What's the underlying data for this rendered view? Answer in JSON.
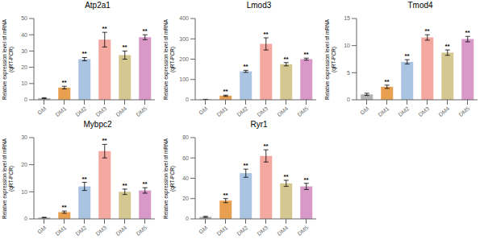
{
  "chart_data": [
    {
      "type": "bar",
      "title": "Atp2a1",
      "categories": [
        "GM",
        "DM1",
        "DM2",
        "DM3",
        "DM4",
        "DM5"
      ],
      "values": [
        1.0,
        7.5,
        25.0,
        37.0,
        27.5,
        38.5
      ],
      "errors": [
        0.3,
        0.8,
        1.0,
        4.5,
        2.5,
        1.5
      ],
      "colors": [
        "#b2b2b2",
        "#e8a050",
        "#a8c4e0",
        "#f4a8a0",
        "#d4c890",
        "#d898c8"
      ],
      "ylabel": "Relative expression level of mRNA\n(qRT-PCR)",
      "ylim": [
        0,
        50
      ],
      "yticks": [
        0,
        10,
        20,
        30,
        40,
        50
      ],
      "annotations": [
        {
          "x": "DM1",
          "text": "**"
        },
        {
          "x": "DM2",
          "text": "**"
        },
        {
          "x": "DM3",
          "text": "**"
        },
        {
          "x": "DM4",
          "text": "**"
        },
        {
          "x": "DM5",
          "text": "**"
        }
      ]
    },
    {
      "type": "bar",
      "title": "Lmod3",
      "categories": [
        "GM",
        "DM1",
        "DM2",
        "DM3",
        "DM4",
        "DM5"
      ],
      "values": [
        2.0,
        20.0,
        140.0,
        275.0,
        175.0,
        200.0
      ],
      "errors": [
        0.5,
        3.0,
        5.0,
        30.0,
        8.0,
        5.0
      ],
      "colors": [
        "#b2b2b2",
        "#e8a050",
        "#a8c4e0",
        "#f4a8a0",
        "#d4c890",
        "#d898c8"
      ],
      "ylabel": "Relative expression level of mRNA\n(qRT-PCR)",
      "ylim": [
        0,
        400
      ],
      "yticks": [
        0,
        100,
        200,
        300,
        400
      ],
      "annotations": [
        {
          "x": "DM1",
          "text": "**"
        },
        {
          "x": "DM2",
          "text": "**"
        },
        {
          "x": "DM3",
          "text": "**"
        },
        {
          "x": "DM4",
          "text": "**"
        },
        {
          "x": "DM5",
          "text": "**"
        }
      ]
    },
    {
      "type": "bar",
      "title": "Tmod4",
      "categories": [
        "GM",
        "DM1",
        "DM2",
        "DM3",
        "DM4",
        "DM5"
      ],
      "values": [
        1.0,
        2.4,
        7.0,
        11.5,
        8.7,
        11.2
      ],
      "errors": [
        0.2,
        0.3,
        0.4,
        0.5,
        0.5,
        0.5
      ],
      "colors": [
        "#b2b2b2",
        "#e8a050",
        "#a8c4e0",
        "#f4a8a0",
        "#d4c890",
        "#d898c8"
      ],
      "ylabel": "Relative expression level of mRNA\n(qRT-PCR)",
      "ylim": [
        0,
        15
      ],
      "yticks": [
        0,
        5,
        10,
        15
      ],
      "annotations": [
        {
          "x": "DM1",
          "text": "**"
        },
        {
          "x": "DM2",
          "text": "**"
        },
        {
          "x": "DM3",
          "text": "**"
        },
        {
          "x": "DM4",
          "text": "**"
        },
        {
          "x": "DM5",
          "text": "**"
        }
      ]
    },
    {
      "type": "bar",
      "title": "Mybpc2",
      "categories": [
        "GM",
        "DM1",
        "DM2",
        "DM3",
        "DM4",
        "DM5"
      ],
      "values": [
        0.5,
        2.5,
        12.0,
        25.0,
        10.0,
        10.5
      ],
      "errors": [
        0.1,
        0.4,
        1.5,
        2.5,
        1.0,
        1.0
      ],
      "colors": [
        "#b2b2b2",
        "#e8a050",
        "#a8c4e0",
        "#f4a8a0",
        "#d4c890",
        "#d898c8"
      ],
      "ylabel": "Relative expression level of mRNA\n(qRT-PCR)",
      "ylim": [
        0,
        30
      ],
      "yticks": [
        0,
        10,
        20,
        30
      ],
      "annotations": [
        {
          "x": "DM1",
          "text": "**"
        },
        {
          "x": "DM2",
          "text": "**"
        },
        {
          "x": "DM3",
          "text": "**"
        },
        {
          "x": "DM4",
          "text": "**"
        },
        {
          "x": "DM5",
          "text": "**"
        }
      ]
    },
    {
      "type": "bar",
      "title": "Ryr1",
      "categories": [
        "GM",
        "DM1",
        "DM2",
        "DM3",
        "DM4",
        "DM5"
      ],
      "values": [
        2.0,
        18.0,
        45.0,
        62.0,
        35.0,
        32.0
      ],
      "errors": [
        0.5,
        2.0,
        4.0,
        6.0,
        3.0,
        3.0
      ],
      "colors": [
        "#b2b2b2",
        "#e8a050",
        "#a8c4e0",
        "#f4a8a0",
        "#d4c890",
        "#d898c8"
      ],
      "ylabel": "Relative expression level of mRNA\n(qRT-PCR)",
      "ylim": [
        0,
        80
      ],
      "yticks": [
        0,
        20,
        40,
        60,
        80
      ],
      "annotations": [
        {
          "x": "DM1",
          "text": "**"
        },
        {
          "x": "DM2",
          "text": "**"
        },
        {
          "x": "DM3",
          "text": "**"
        },
        {
          "x": "DM4",
          "text": "**"
        },
        {
          "x": "DM5",
          "text": "**"
        }
      ]
    }
  ]
}
